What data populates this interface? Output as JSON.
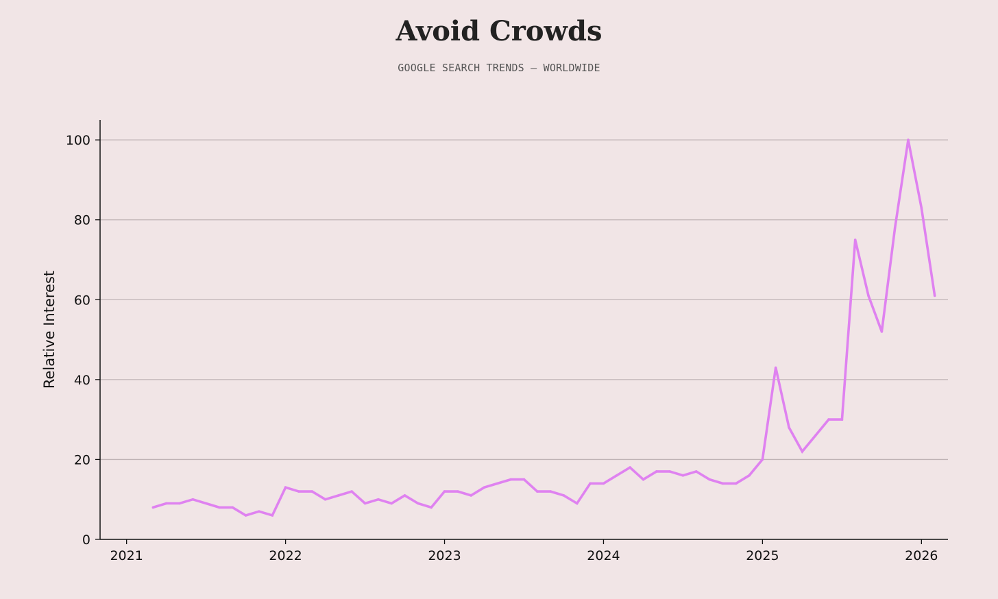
{
  "header": {
    "title": "Avoid Crowds",
    "subtitle": "GOOGLE SEARCH TRENDS — WORLDWIDE"
  },
  "chart_data": {
    "type": "line",
    "title": "Avoid Crowds",
    "subtitle": "GOOGLE SEARCH TRENDS — WORLDWIDE",
    "xlabel": "",
    "ylabel": "Relative Interest",
    "xlim": [
      "2020-11-01",
      "2026-03-01"
    ],
    "ylim": [
      0,
      105
    ],
    "x_ticks": [
      "2021",
      "2022",
      "2023",
      "2024",
      "2025",
      "2026"
    ],
    "y_ticks": [
      0,
      20,
      40,
      60,
      80,
      100
    ],
    "grid": "horizontal",
    "line_color": "#df82f0",
    "series": [
      {
        "x": [
          "2021-03",
          "2021-04",
          "2021-05",
          "2021-06",
          "2021-07",
          "2021-08",
          "2021-09",
          "2021-10",
          "2021-11",
          "2021-12",
          "2022-01",
          "2022-02",
          "2022-03",
          "2022-04",
          "2022-05",
          "2022-06",
          "2022-07",
          "2022-08",
          "2022-09",
          "2022-10",
          "2022-11",
          "2022-12",
          "2023-01",
          "2023-02",
          "2023-03",
          "2023-04",
          "2023-05",
          "2023-06",
          "2023-07",
          "2023-08",
          "2023-09",
          "2023-10",
          "2023-11",
          "2023-12",
          "2024-01",
          "2024-02",
          "2024-03",
          "2024-04",
          "2024-05",
          "2024-06",
          "2024-07",
          "2024-08",
          "2024-09",
          "2024-10",
          "2024-11",
          "2024-12",
          "2025-01",
          "2025-02",
          "2025-03",
          "2025-04",
          "2025-05",
          "2025-06",
          "2025-07",
          "2025-08",
          "2025-09",
          "2025-10",
          "2025-11",
          "2025-12",
          "2026-01",
          "2026-02"
        ],
        "values": [
          8,
          9,
          9,
          10,
          9,
          8,
          8,
          6,
          7,
          6,
          13,
          12,
          12,
          10,
          11,
          12,
          9,
          10,
          9,
          11,
          9,
          8,
          12,
          12,
          11,
          13,
          14,
          15,
          15,
          12,
          12,
          11,
          9,
          14,
          14,
          16,
          18,
          15,
          17,
          17,
          16,
          17,
          15,
          14,
          14,
          16,
          20,
          43,
          28,
          22,
          26,
          30,
          30,
          75,
          61,
          52,
          78,
          100,
          83,
          61
        ]
      }
    ]
  }
}
